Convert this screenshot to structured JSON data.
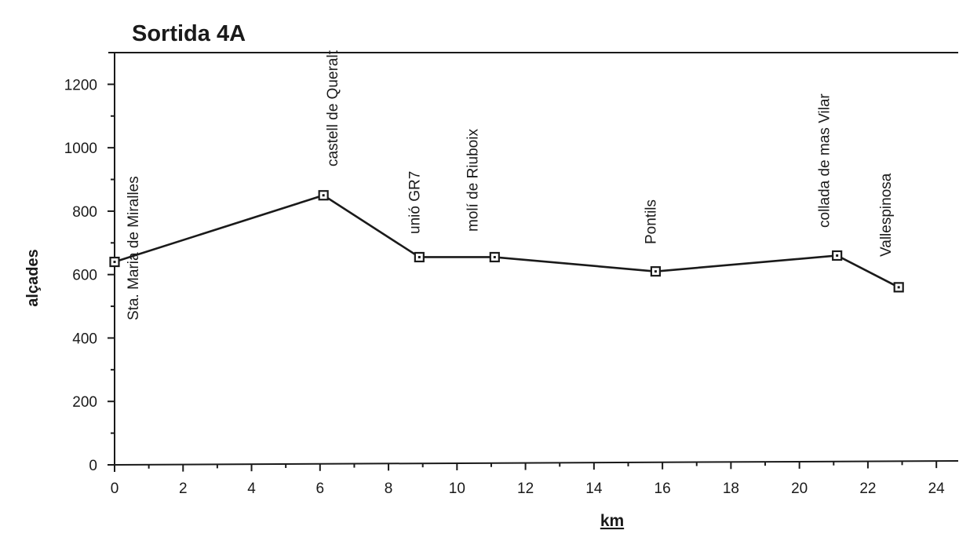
{
  "chart_data": {
    "type": "line",
    "title": "Sortida 4A",
    "xlabel": "km",
    "ylabel": "alçades",
    "xlim": [
      0,
      24.5
    ],
    "ylim": [
      0,
      1300
    ],
    "x_ticks": [
      0,
      2,
      4,
      6,
      8,
      10,
      12,
      14,
      16,
      18,
      20,
      22,
      24
    ],
    "y_ticks": [
      0,
      200,
      400,
      600,
      800,
      1000,
      1200
    ],
    "grid": false,
    "series": [
      {
        "x": [
          0,
          6.1,
          8.9,
          11.1,
          15.8,
          21.1,
          22.9
        ],
        "y": [
          640,
          850,
          655,
          655,
          610,
          660,
          560
        ],
        "labels": [
          "Sta. Maria de Miralles",
          "castell de Queralt",
          "unió GR7",
          "molí de Riuboix",
          "Pontils",
          "collada de mas Vilar",
          "Vallespinosa"
        ]
      }
    ]
  }
}
